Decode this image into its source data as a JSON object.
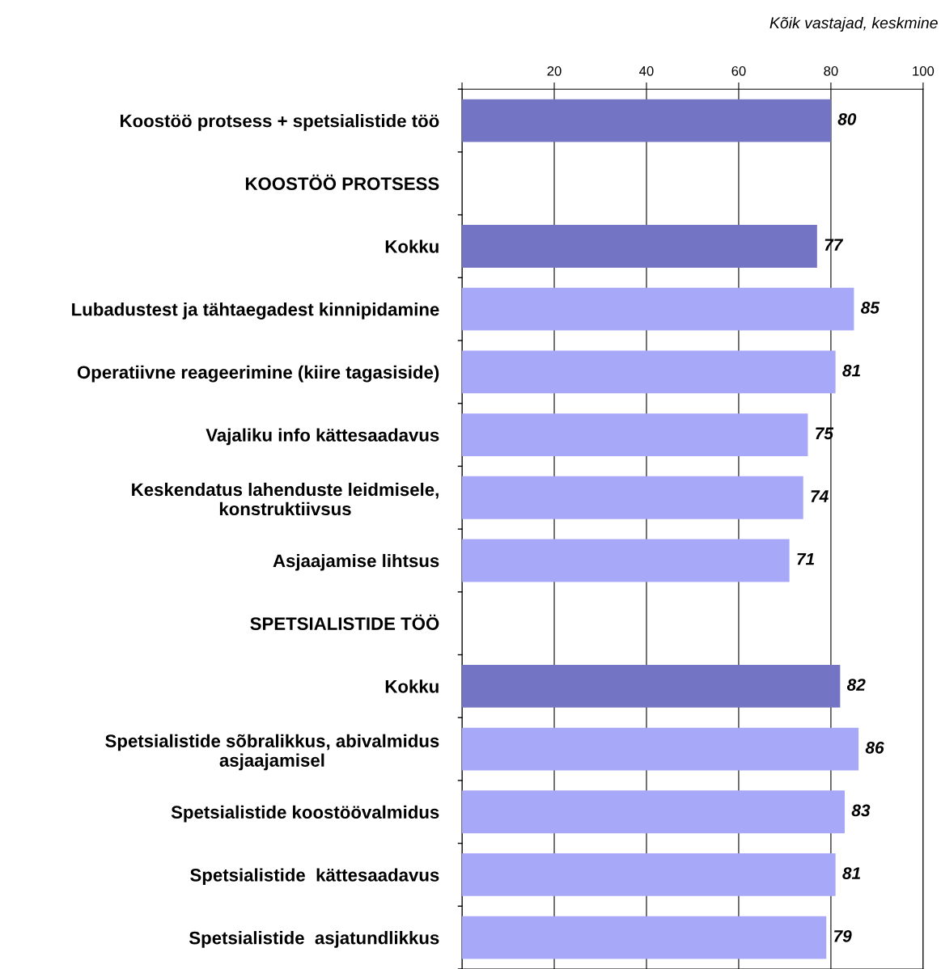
{
  "chart_data": {
    "type": "bar",
    "orientation": "horizontal",
    "categories": [
      "Koostöö protsess + spetsialistide töö",
      "KOOSTÖÖ PROTSESS",
      "Kokku",
      "Lubadustest ja tähtaegadest kinnipidamine",
      "Operatiivne reageerimine (kiire tagasiside)",
      "Vajaliku info kättesaadavus",
      "Keskendatus lahenduste leidmisele,\nkonstruktiivsus",
      "Asjaajamise lihtsus",
      "SPETSIALISTIDE TÖÖ",
      "Kokku",
      "Spetsialistide sõbralikkus, abivalmidus\nasjaajamisel",
      "Spetsialistide koostöövalmidus",
      "Spetsialistide  kättesaadavus",
      "Spetsialistide  asjatundlikkus"
    ],
    "values": [
      80,
      null,
      77,
      85,
      81,
      75,
      74,
      71,
      null,
      82,
      86,
      83,
      81,
      79
    ],
    "colors": [
      "#7474c4",
      null,
      "#7474c4",
      "#a8a8f8",
      "#a8a8f8",
      "#a8a8f8",
      "#a8a8f8",
      "#a8a8f8",
      null,
      "#7474c4",
      "#a8a8f8",
      "#a8a8f8",
      "#a8a8f8",
      "#a8a8f8"
    ],
    "xlim": [
      0,
      100
    ],
    "xticks": [
      {
        "value": 0,
        "label": null
      },
      20,
      40,
      60,
      80,
      100
    ],
    "grid": "x",
    "data_labels": true,
    "legend": false,
    "annotations": [
      "Kõik vastajad, keskmine"
    ]
  }
}
